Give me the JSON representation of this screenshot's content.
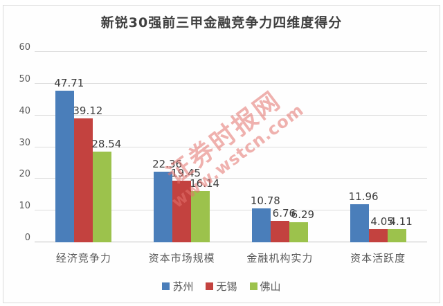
{
  "title": "新锐30强前三甲金融竞争力四维度得分",
  "watermark": {
    "line1": "证券时报网",
    "line2": "www.wstcn.com"
  },
  "colors": {
    "suzhou_blue": "#4A7EBA",
    "wuxi_red": "#C3423F",
    "foshan_green": "#9CC24C",
    "gridline": "#dcdcdc",
    "axis_line": "#c0c0c0",
    "text_dark": "#3f3f3f",
    "text_gray": "#595959",
    "watermark_pink": "#e4736d"
  },
  "chart_data": {
    "type": "bar",
    "title": "新锐30强前三甲金融竞争力四维度得分",
    "categories": [
      "经济竞争力",
      "资本市场规模",
      "金融机构实力",
      "资本活跃度"
    ],
    "series": [
      {
        "name": "苏州",
        "color": "#4A7EBA",
        "values": [
          47.71,
          22.36,
          10.78,
          11.96
        ]
      },
      {
        "name": "无锡",
        "color": "#C3423F",
        "values": [
          39.12,
          19.45,
          6.76,
          4.05
        ]
      },
      {
        "name": "佛山",
        "color": "#9CC24C",
        "values": [
          28.54,
          16.14,
          6.29,
          4.11
        ]
      }
    ],
    "xlabel": "",
    "ylabel": "",
    "ylim": [
      0,
      60
    ],
    "yticks": [
      0,
      10,
      20,
      30,
      40,
      50,
      60
    ],
    "grid": true,
    "data_labels": true,
    "legend_position": "bottom"
  }
}
